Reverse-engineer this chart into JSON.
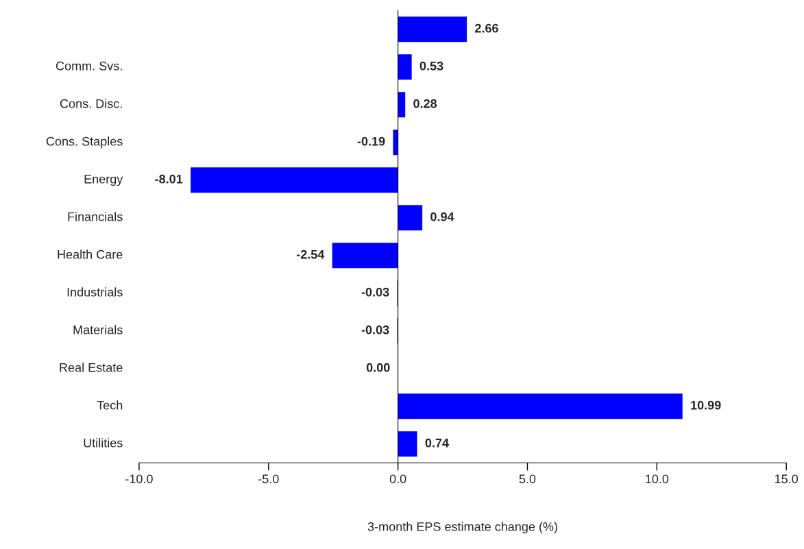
{
  "chart_data": {
    "type": "bar",
    "orientation": "horizontal",
    "xlabel": "3-month EPS estimate change (%)",
    "categories": [
      null,
      "Comm. Svs.",
      "Cons. Disc.",
      "Cons. Staples",
      "Energy",
      "Financials",
      "Health Care",
      "Industrials",
      "Materials",
      "Real Estate",
      "Tech",
      "Utilities"
    ],
    "values": [
      2.66,
      0.53,
      0.28,
      -0.19,
      -8.01,
      0.94,
      -2.54,
      -0.03,
      -0.03,
      0.0,
      10.99,
      0.74
    ],
    "value_labels": [
      "2.66",
      "0.53",
      "0.28",
      "-0.19",
      "-8.01",
      "0.94",
      "-2.54",
      "-0.03",
      "-0.03",
      "0.00",
      "10.99",
      "0.74"
    ],
    "color": "#0000ff",
    "xlim": [
      -10,
      15
    ],
    "xticks": [
      {
        "value": -10,
        "label": "-10.0"
      },
      {
        "value": -5,
        "label": "-5.0"
      },
      {
        "value": 0,
        "label": "0.0"
      },
      {
        "value": 5,
        "label": "5.0"
      },
      {
        "value": 10,
        "label": "10.0"
      },
      {
        "value": 15,
        "label": "15.0"
      }
    ],
    "legend": false
  }
}
